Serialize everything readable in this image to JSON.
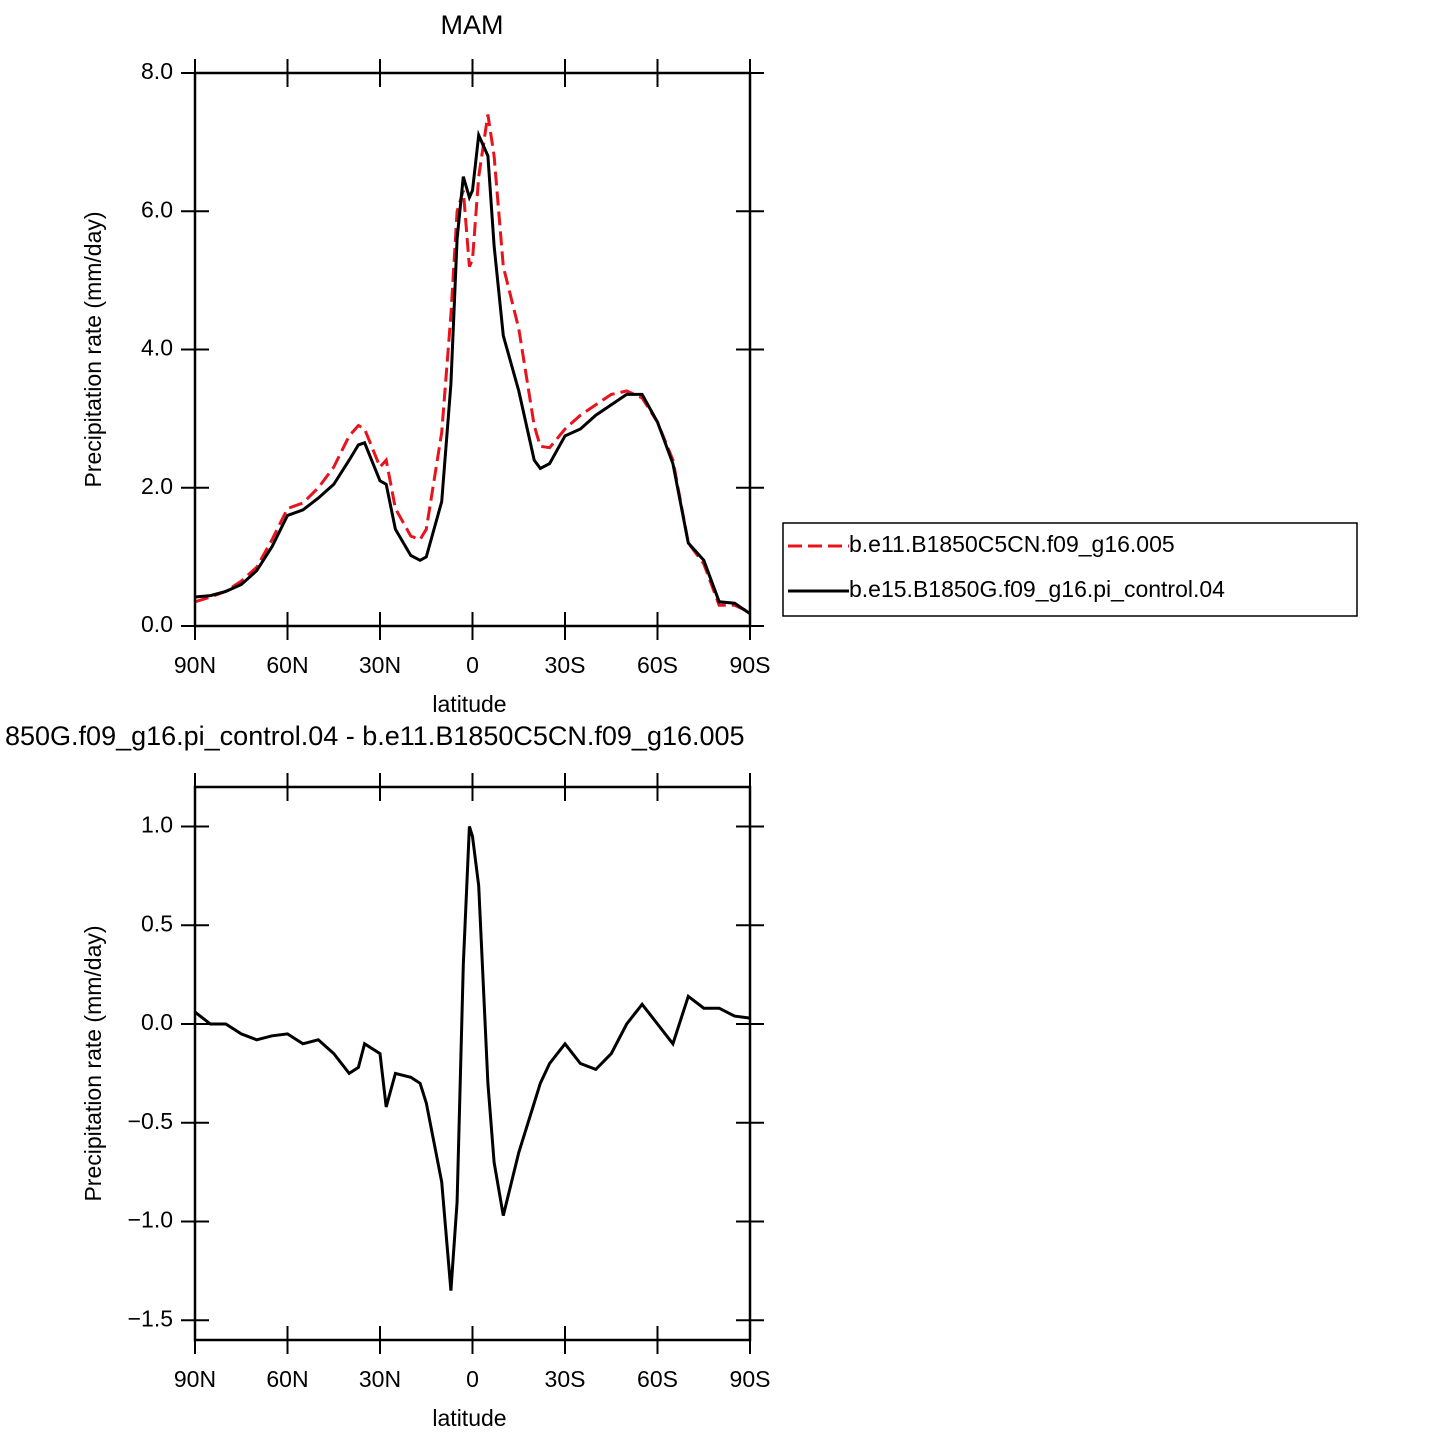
{
  "chart_data": [
    {
      "type": "line",
      "title": "MAM",
      "xlabel": "latitude",
      "ylabel": "Precipitation rate (mm/day)",
      "x": [
        90,
        85,
        80,
        75,
        70,
        65,
        60,
        55,
        50,
        45,
        40,
        37,
        35,
        30,
        28,
        25,
        20,
        17,
        15,
        10,
        7,
        5,
        3,
        1,
        0,
        -2,
        -5,
        -7,
        -10,
        -15,
        -20,
        -22,
        -25,
        -30,
        -35,
        -40,
        -45,
        -50,
        -55,
        -60,
        -65,
        -70,
        -75,
        -80,
        -85,
        -90
      ],
      "series": [
        {
          "name": "b.e11.B1850C5CN.f09_g16.005",
          "color": "#e8131c",
          "line_style": "dashed",
          "values": [
            0.35,
            0.42,
            0.5,
            0.65,
            0.85,
            1.25,
            1.7,
            1.78,
            2.0,
            2.3,
            2.75,
            2.9,
            2.85,
            2.3,
            2.4,
            1.7,
            1.3,
            1.25,
            1.4,
            2.8,
            4.5,
            6.0,
            6.3,
            5.2,
            5.3,
            6.5,
            7.4,
            6.8,
            5.2,
            4.3,
            2.9,
            2.6,
            2.58,
            2.85,
            3.05,
            3.2,
            3.35,
            3.4,
            3.3,
            2.95,
            2.4,
            1.2,
            0.9,
            0.3,
            0.3,
            0.2
          ]
        },
        {
          "name": "b.e15.B1850G.f09_g16.pi_control.04",
          "color": "#000000",
          "line_style": "solid",
          "values": [
            0.42,
            0.44,
            0.5,
            0.6,
            0.8,
            1.15,
            1.6,
            1.68,
            1.85,
            2.05,
            2.4,
            2.62,
            2.65,
            2.1,
            2.05,
            1.4,
            1.02,
            0.95,
            1.0,
            1.8,
            3.5,
            5.6,
            6.5,
            6.2,
            6.3,
            7.1,
            6.8,
            5.5,
            4.2,
            3.4,
            2.4,
            2.28,
            2.35,
            2.75,
            2.85,
            3.05,
            3.2,
            3.35,
            3.35,
            2.95,
            2.35,
            1.2,
            0.95,
            0.35,
            0.33,
            0.18
          ]
        }
      ],
      "xlim": [
        90,
        -90
      ],
      "xticks": [
        {
          "value": 90,
          "label": "90N"
        },
        {
          "value": 60,
          "label": "60N"
        },
        {
          "value": 30,
          "label": "30N"
        },
        0,
        {
          "value": -30,
          "label": "30S"
        },
        {
          "value": -60,
          "label": "60S"
        },
        {
          "value": -90,
          "label": "90S"
        }
      ],
      "ylim": [
        0,
        8
      ],
      "yticks": [
        {
          "value": 0,
          "label": "0.0"
        },
        {
          "value": 2,
          "label": "2.0"
        },
        {
          "value": 4,
          "label": "4.0"
        },
        {
          "value": 6,
          "label": "6.0"
        },
        {
          "value": 8,
          "label": "8.0"
        }
      ],
      "legend": "right"
    },
    {
      "type": "line",
      "title": "850G.f09_g16.pi_control.04 - b.e11.B1850C5CN.f09_g16.005",
      "xlabel": "latitude",
      "ylabel": "Precipitation rate (mm/day)",
      "x": [
        90,
        85,
        80,
        75,
        70,
        65,
        60,
        55,
        50,
        45,
        40,
        37,
        35,
        30,
        28,
        25,
        20,
        17,
        15,
        10,
        7,
        5,
        3,
        1,
        0,
        -2,
        -5,
        -7,
        -10,
        -15,
        -20,
        -22,
        -25,
        -30,
        -35,
        -40,
        -45,
        -50,
        -55,
        -60,
        -65,
        -70,
        -75,
        -80,
        -85,
        -90
      ],
      "series": [
        {
          "color": "#000000",
          "line_style": "solid",
          "values": [
            0.06,
            0.0,
            0.0,
            -0.05,
            -0.08,
            -0.06,
            -0.05,
            -0.1,
            -0.08,
            -0.15,
            -0.25,
            -0.22,
            -0.1,
            -0.15,
            -0.42,
            -0.25,
            -0.27,
            -0.3,
            -0.4,
            -0.8,
            -1.35,
            -0.9,
            0.3,
            1.0,
            0.95,
            0.7,
            -0.3,
            -0.7,
            -0.97,
            -0.65,
            -0.4,
            -0.3,
            -0.2,
            -0.1,
            -0.2,
            -0.23,
            -0.15,
            0.0,
            0.1,
            0.0,
            -0.1,
            0.14,
            0.08,
            0.08,
            0.04,
            0.03
          ]
        }
      ],
      "xlim": [
        90,
        -90
      ],
      "xticks": [
        {
          "value": 90,
          "label": "90N"
        },
        {
          "value": 60,
          "label": "60N"
        },
        {
          "value": 30,
          "label": "30N"
        },
        0,
        {
          "value": -30,
          "label": "30S"
        },
        {
          "value": -60,
          "label": "60S"
        },
        {
          "value": -90,
          "label": "90S"
        }
      ],
      "ylim": [
        -1.6,
        1.2
      ],
      "yticks": [
        {
          "value": -1.5,
          "label": "−1.5"
        },
        {
          "value": -1,
          "label": "−1.0"
        },
        {
          "value": -0.5,
          "label": "−0.5"
        },
        {
          "value": 0,
          "label": "0.0"
        },
        {
          "value": 0.5,
          "label": "0.5"
        },
        {
          "value": 1,
          "label": "1.0"
        }
      ]
    }
  ]
}
